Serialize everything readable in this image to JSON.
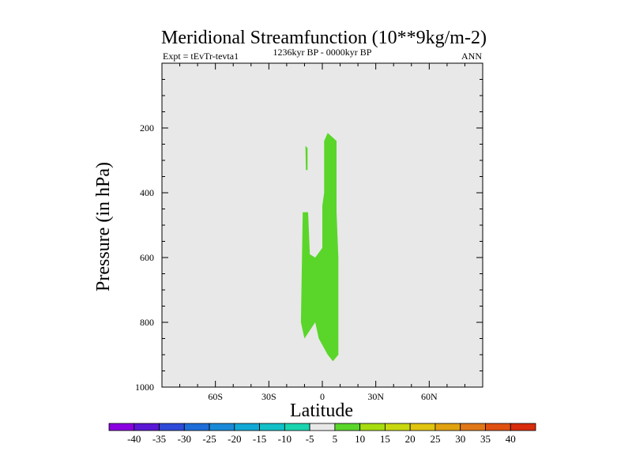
{
  "chart_data": {
    "type": "contour",
    "title": "Meridional Streamfunction (10**9kg/m-2)",
    "left_label": "Expt = tEvTr-tevta1",
    "center_label": "1236kyr BP - 0000kyr BP",
    "right_label": "ANN",
    "xlabel": "Latitude",
    "ylabel": "Pressure (in hPa)",
    "xlim": [
      -90,
      90
    ],
    "ylim": [
      0,
      1000
    ],
    "y_reversed": true,
    "x_ticks": [
      {
        "value": -60,
        "label": "60S"
      },
      {
        "value": -30,
        "label": "30S"
      },
      {
        "value": 0,
        "label": "0"
      },
      {
        "value": 30,
        "label": "30N"
      },
      {
        "value": 60,
        "label": "60N"
      }
    ],
    "y_ticks": [
      {
        "value": 200,
        "label": "200"
      },
      {
        "value": 400,
        "label": "400"
      },
      {
        "value": 600,
        "label": "600"
      },
      {
        "value": 800,
        "label": "800"
      },
      {
        "value": 1000,
        "label": "1000"
      }
    ],
    "background_fill": {
      "range": "-5 to 5",
      "color": "#e8e8e8"
    },
    "regions": [
      {
        "name": "positive-5-10-main",
        "level": "5 to 10",
        "color": "#5ad62a",
        "polygon": [
          [
            3,
            215
          ],
          [
            6,
            230
          ],
          [
            8,
            240
          ],
          [
            8,
            460
          ],
          [
            9,
            600
          ],
          [
            9,
            900
          ],
          [
            6,
            920
          ],
          [
            3,
            900
          ],
          [
            -2,
            850
          ],
          [
            -4,
            800
          ],
          [
            -10,
            850
          ],
          [
            -12,
            800
          ],
          [
            -11,
            460
          ],
          [
            -8,
            460
          ],
          [
            -7,
            590
          ],
          [
            -4,
            600
          ],
          [
            0,
            570
          ],
          [
            0,
            440
          ],
          [
            1,
            400
          ],
          [
            1,
            240
          ]
        ]
      },
      {
        "name": "positive-5-10-upper-small",
        "level": "5 to 10",
        "color": "#5ad62a",
        "polygon": [
          [
            -9.5,
            255
          ],
          [
            -8.3,
            262
          ],
          [
            -8.3,
            330
          ],
          [
            -9.2,
            330
          ]
        ]
      }
    ],
    "colorbar": {
      "labels": [
        "-40",
        "-35",
        "-30",
        "-25",
        "-20",
        "-15",
        "-10",
        "-5",
        "5",
        "10",
        "15",
        "20",
        "25",
        "30",
        "35",
        "40"
      ],
      "colors": [
        "#8a00e0",
        "#5a18d6",
        "#2e4ad8",
        "#1e6ed8",
        "#1a8ad8",
        "#12a8d6",
        "#12c0c8",
        "#1ad4b0",
        "#e8e8e8",
        "#5ad62a",
        "#a6dc10",
        "#c8d810",
        "#e0c410",
        "#e0a210",
        "#e07818",
        "#e05010",
        "#d82c0c"
      ]
    }
  }
}
